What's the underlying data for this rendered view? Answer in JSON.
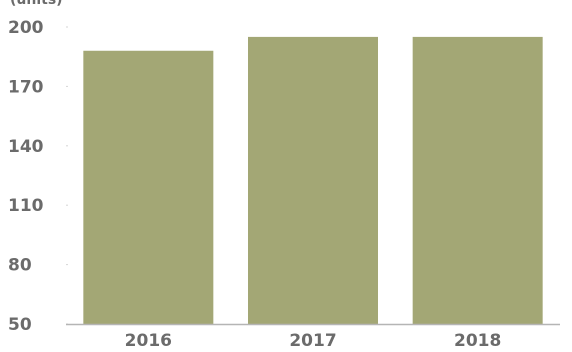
{
  "chart_data": {
    "type": "bar",
    "categories": [
      "2016",
      "2017",
      "2018"
    ],
    "values": [
      188,
      195,
      195
    ],
    "ylim": [
      50,
      200
    ],
    "yticks": [
      50,
      80,
      110,
      140,
      170,
      200
    ],
    "ylabel": "(units)",
    "grid": false,
    "bar_color": "#a3a775",
    "axis_color": "#b5b5b5"
  }
}
